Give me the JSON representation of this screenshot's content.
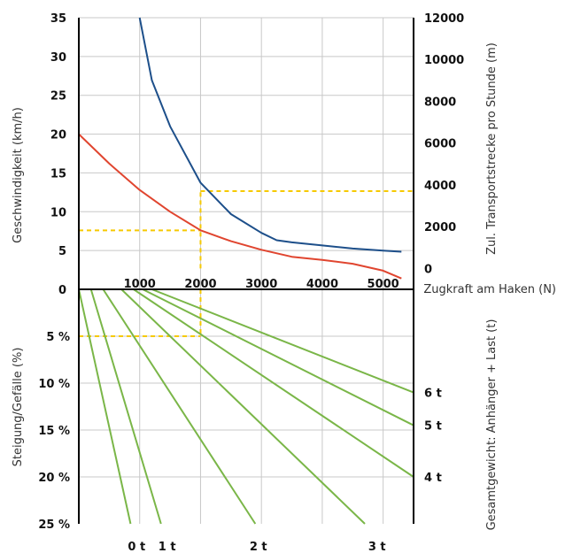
{
  "chart_data": [
    {
      "type": "line",
      "title": "",
      "xlabel": "Zugkraft am Haken (N)",
      "ylabel": "Geschwindigkeit (km/h)",
      "y2label": "Zul. Transportstrecke pro Stunde (m)",
      "x_ticks": [
        "1000",
        "2000",
        "3000",
        "4000",
        "5000"
      ],
      "y_ticks": [
        "0",
        "5",
        "10",
        "15",
        "20",
        "25",
        "30",
        "35"
      ],
      "y2_ticks": [
        "0",
        "2000",
        "4000",
        "6000",
        "8000",
        "10000",
        "12000"
      ],
      "xlim": [
        0,
        5500
      ],
      "ylim": [
        0,
        35
      ],
      "y2lim": [
        -1000,
        12000
      ],
      "grid": true,
      "series": [
        {
          "axis": "left",
          "color": "#e0452f",
          "points": [
            [
              0,
              20
            ],
            [
              500,
              16.2
            ],
            [
              1000,
              12.8
            ],
            [
              1500,
              10
            ],
            [
              2000,
              7.6
            ],
            [
              2500,
              6.2
            ],
            [
              3000,
              5.1
            ],
            [
              3500,
              4.2
            ],
            [
              4000,
              3.8
            ],
            [
              4500,
              3.3
            ],
            [
              5000,
              2.4
            ],
            [
              5300,
              1.4
            ]
          ]
        },
        {
          "axis": "right",
          "color": "#1d4f8a",
          "points": [
            [
              1000,
              12000
            ],
            [
              1200,
              9000
            ],
            [
              1500,
              6800
            ],
            [
              2000,
              4100
            ],
            [
              2500,
              2600
            ],
            [
              3000,
              1700
            ],
            [
              3250,
              1350
            ],
            [
              3500,
              1250
            ],
            [
              4000,
              1100
            ],
            [
              4500,
              950
            ],
            [
              5000,
              850
            ],
            [
              5300,
              800
            ]
          ]
        }
      ],
      "guides": [
        {
          "from": [
            0,
            7.6
          ],
          "to": [
            2000,
            7.6
          ],
          "axis": "left"
        },
        {
          "from": [
            2000,
            3700
          ],
          "to": [
            5500,
            3700
          ],
          "axis": "right"
        },
        {
          "from": [
            2000,
            0
          ],
          "to": [
            2000,
            3700
          ],
          "axis": "right"
        }
      ],
      "guide_color": "#f6c900"
    },
    {
      "type": "line",
      "title": "",
      "xlabel": "",
      "ylabel": "Steigung/Gefälle (%)",
      "y2label": "Gesamtgewicht: Anhänger + Last (t)",
      "y_ticks": [
        "5 %",
        "10 %",
        "15 %",
        "20 %",
        "25 %"
      ],
      "y_tick_values": [
        5,
        10,
        15,
        20,
        25
      ],
      "ylim": [
        0,
        25
      ],
      "grid": true,
      "bottom_labels": [
        {
          "label": "0 t",
          "x": 950
        },
        {
          "label": "1 t",
          "x": 1450
        },
        {
          "label": "2 t",
          "x": 2950
        },
        {
          "label": "3 t",
          "x": 4900
        }
      ],
      "right_labels": [
        {
          "label": "6 t",
          "slope_pct": 11
        },
        {
          "label": "5 t",
          "slope_pct": 14.5
        },
        {
          "label": "4 t",
          "slope_pct": 20
        }
      ],
      "line_color": "#7ab648",
      "lines": [
        {
          "start_x": 0,
          "end": [
            850,
            25
          ]
        },
        {
          "start_x": 200,
          "end": [
            1350,
            25
          ]
        },
        {
          "start_x": 400,
          "end": [
            2900,
            25
          ]
        },
        {
          "start_x": 700,
          "end": [
            4700,
            25
          ]
        },
        {
          "start_x": 900,
          "end": [
            5500,
            20
          ]
        },
        {
          "start_x": 1050,
          "end": [
            5500,
            14.5
          ]
        },
        {
          "start_x": 1200,
          "end": [
            5500,
            11
          ]
        }
      ],
      "guides": [
        {
          "from": [
            0,
            5
          ],
          "to": [
            2000,
            5
          ]
        },
        {
          "from": [
            2000,
            0
          ],
          "to": [
            2000,
            5
          ]
        }
      ]
    }
  ]
}
